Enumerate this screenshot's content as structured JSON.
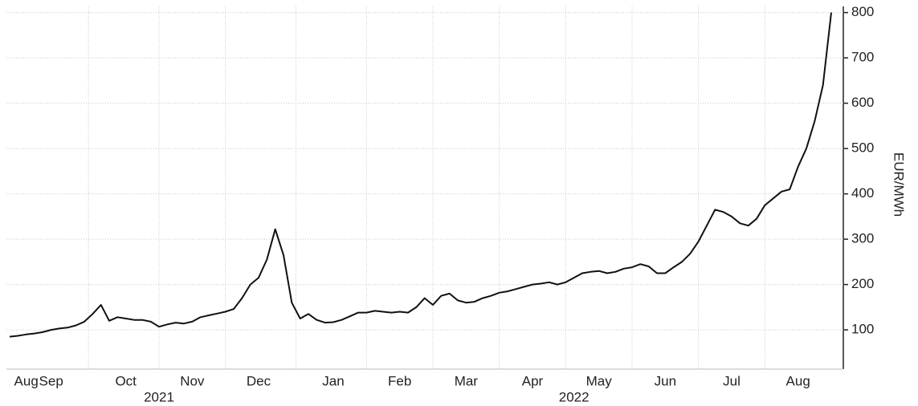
{
  "chart_data": {
    "type": "line",
    "y_label": "EUR/MWh",
    "color": "#111111",
    "grid": true,
    "categories": [
      null,
      null,
      "Aug",
      null,
      null,
      "Sep",
      null,
      null,
      null,
      null,
      null,
      null,
      null,
      null,
      "Oct",
      null,
      null,
      null,
      null,
      null,
      null,
      null,
      "Nov",
      null,
      null,
      null,
      null,
      null,
      null,
      null,
      "Dec",
      null,
      null,
      null,
      null,
      null,
      null,
      null,
      null,
      "Jan",
      null,
      null,
      null,
      null,
      null,
      null,
      null,
      "Feb",
      null,
      null,
      null,
      null,
      null,
      null,
      null,
      "Mar",
      null,
      null,
      null,
      null,
      null,
      null,
      null,
      "Apr",
      null,
      null,
      null,
      null,
      null,
      null,
      null,
      "May",
      null,
      null,
      null,
      null,
      null,
      null,
      null,
      "Jun",
      null,
      null,
      null,
      null,
      null,
      null,
      null,
      "Jul",
      null,
      null,
      null,
      null,
      null,
      null,
      null,
      "Aug",
      null,
      null,
      null,
      null
    ],
    "category_groups": [
      null,
      null,
      null,
      null,
      null,
      null,
      null,
      null,
      null,
      null,
      null,
      null,
      null,
      null,
      null,
      null,
      null,
      null,
      "2021",
      null,
      null,
      null,
      null,
      null,
      null,
      null,
      null,
      null,
      null,
      null,
      null,
      null,
      null,
      null,
      null,
      null,
      null,
      null,
      null,
      null,
      null,
      null,
      null,
      null,
      null,
      null,
      null,
      null,
      null,
      null,
      null,
      null,
      null,
      null,
      null,
      null,
      null,
      null,
      null,
      null,
      null,
      null,
      null,
      null,
      null,
      null,
      null,
      null,
      "2022",
      null,
      null,
      null,
      null,
      null,
      null,
      null,
      null,
      null,
      null,
      null,
      null,
      null,
      null,
      null,
      null,
      null,
      null,
      null,
      null,
      null,
      null,
      null,
      null,
      null,
      null,
      null,
      null,
      null,
      null,
      null
    ],
    "values": [
      85,
      87,
      90,
      92,
      95,
      100,
      103,
      105,
      110,
      118,
      135,
      155,
      120,
      128,
      125,
      122,
      122,
      118,
      107,
      112,
      116,
      114,
      118,
      128,
      132,
      136,
      140,
      146,
      170,
      200,
      215,
      255,
      322,
      265,
      160,
      125,
      135,
      122,
      116,
      117,
      122,
      130,
      138,
      138,
      142,
      140,
      138,
      140,
      138,
      150,
      170,
      155,
      175,
      180,
      165,
      160,
      162,
      170,
      175,
      182,
      185,
      190,
      195,
      200,
      202,
      205,
      200,
      205,
      215,
      225,
      228,
      230,
      225,
      228,
      235,
      238,
      245,
      240,
      225,
      225,
      238,
      250,
      268,
      295,
      330,
      365,
      360,
      350,
      335,
      330,
      345,
      375,
      390,
      405,
      410,
      460,
      500,
      560,
      640,
      800
    ],
    "ylim": [
      17,
      810
    ],
    "yticks": [
      100,
      200,
      300,
      400,
      500,
      600,
      700,
      800
    ]
  }
}
